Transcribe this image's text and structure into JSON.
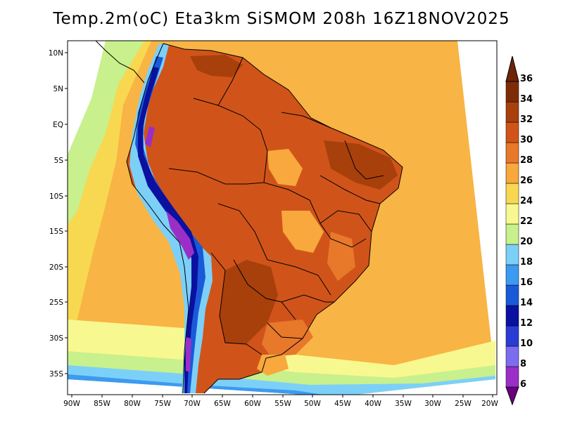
{
  "title": "Temp.2m(oC) Eta3km SiSMOM 208h 16Z18NOV2025",
  "lat_labels": [
    "10N",
    "5N",
    "EQ",
    "5S",
    "10S",
    "15S",
    "20S",
    "25S",
    "30S",
    "35S"
  ],
  "lon_labels": [
    "90W",
    "85W",
    "80W",
    "75W",
    "70W",
    "65W",
    "60W",
    "55W",
    "50W",
    "45W",
    "40W",
    "35W",
    "30W",
    "25W",
    "20W"
  ],
  "colorbar": {
    "labels": [
      "6",
      "8",
      "10",
      "12",
      "14",
      "16",
      "18",
      "20",
      "22",
      "24",
      "26",
      "28",
      "30",
      "32",
      "34",
      "36"
    ],
    "colors": [
      "#6a0080",
      "#9a2fc8",
      "#7b6cf0",
      "#2a3cd4",
      "#0a10a0",
      "#1a5ad8",
      "#3c9af0",
      "#7cd0f8",
      "#c8f08c",
      "#f8f890",
      "#f8d850",
      "#f8a83c",
      "#e8782a",
      "#d0541a",
      "#a8400c",
      "#6e2406"
    ]
  }
}
